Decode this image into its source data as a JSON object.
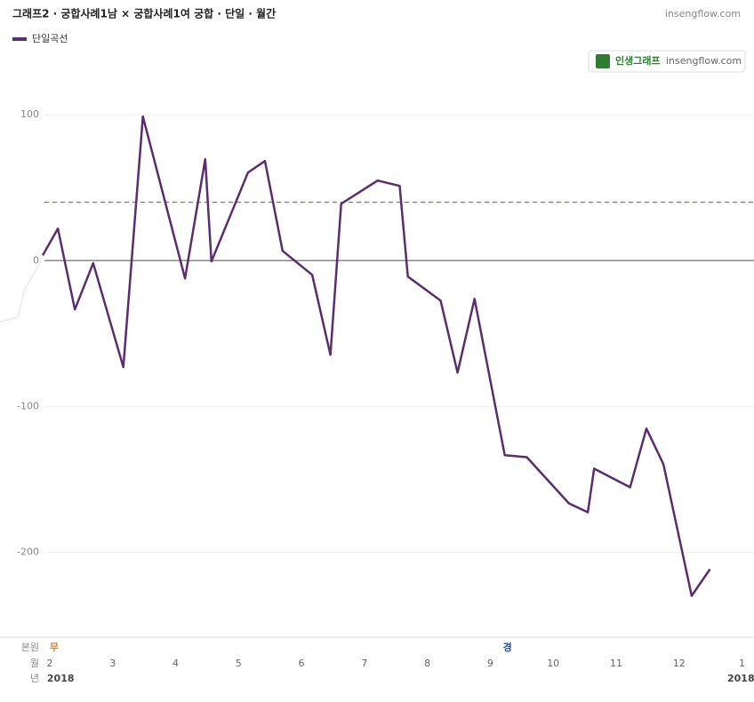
{
  "chart_data": {
    "type": "line",
    "title": "그래프2 · 궁합사례1남 × 궁합사례1여 궁합 · 단일 · 월간",
    "site": "insengflow.com",
    "badge": {
      "name": "인생그래프",
      "site": "insengflow.com"
    },
    "series": [
      {
        "name": "단일곡선",
        "color": "#5b2d6e",
        "x": [
          1.89,
          2.13,
          2.4,
          2.69,
          3.17,
          3.48,
          4.15,
          4.47,
          4.57,
          5.15,
          5.42,
          5.7,
          6.17,
          6.46,
          6.63,
          7.21,
          7.56,
          7.69,
          8.21,
          8.48,
          8.75,
          9.23,
          9.58,
          10.25,
          10.55,
          10.65,
          11.22,
          11.48,
          11.75,
          12.2,
          12.49
        ],
        "values": [
          3.7,
          22,
          -33.5,
          -1.8,
          -73,
          98.8,
          -12.2,
          69.5,
          -0.6,
          60.4,
          68.3,
          6.7,
          -9.8,
          -64.6,
          39,
          54.9,
          51.2,
          -11,
          -27.4,
          -76.8,
          -26.2,
          -133.5,
          -134.8,
          -166.5,
          -172.6,
          -142.7,
          -155.5,
          -115.2,
          -139.6,
          -229.9,
          -211.6
        ]
      },
      {
        "color": "#eeeeee",
        "x": [
          1.21,
          1.49,
          1.6,
          1.84,
          1.89
        ],
        "values": [
          -42,
          -39,
          -20,
          -1.8,
          3.7
        ]
      }
    ],
    "reference_line": {
      "value": 40,
      "color": "#c0392b"
    },
    "xlim": [
      1.21,
      13.19
    ],
    "xticks": [
      2,
      3,
      4,
      5,
      6,
      7,
      8,
      9,
      10,
      11,
      12,
      {
        "value": 13,
        "label": "1"
      }
    ],
    "ylim": [
      -257,
      133
    ],
    "yticks": [
      100,
      0,
      -100,
      -200
    ],
    "grid": true,
    "row_labels": [
      "본원",
      "월",
      "년"
    ],
    "annotations": [
      {
        "x": 2,
        "label": "무",
        "color": "#e67e22"
      },
      {
        "x": 9.2,
        "label": "경",
        "color": "#1f4e99"
      }
    ],
    "years": [
      {
        "x": 2,
        "label": "2018"
      },
      {
        "x": 13,
        "label": "2018"
      }
    ]
  }
}
